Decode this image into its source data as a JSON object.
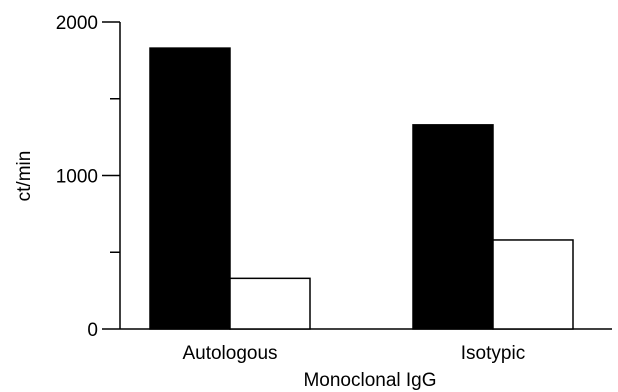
{
  "chart_data": {
    "type": "bar",
    "categories": [
      "Autologous",
      "Isotypic"
    ],
    "series": [
      {
        "values": [
          1830,
          1330
        ],
        "color": "#000000"
      },
      {
        "values": [
          330,
          580
        ],
        "color": "#ffffff"
      }
    ],
    "xlabel": "Monoclonal IgG",
    "ylabel": "ct/min",
    "ylim": [
      0,
      2000
    ],
    "yticks": [
      "0",
      "1000",
      "2000"
    ],
    "grid": false,
    "legend": "none"
  }
}
